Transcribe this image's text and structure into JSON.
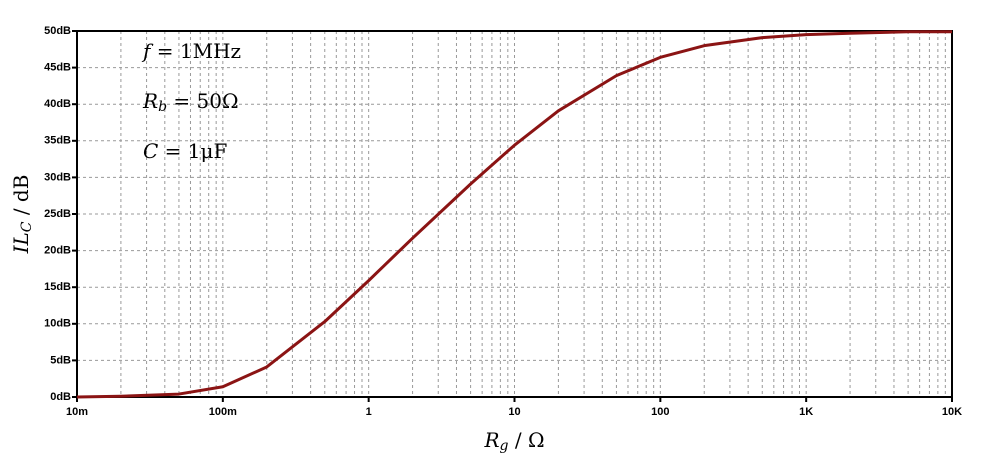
{
  "chart_data": {
    "type": "line",
    "xlabel": {
      "main": "R",
      "sub": "g",
      "rest": " / Ω"
    },
    "ylabel": {
      "main": "IL",
      "sub": "C",
      "rest": " / dB"
    },
    "annotations": [
      {
        "main": "f",
        "rest": " = 1MHz"
      },
      {
        "main": "R",
        "sub": "b",
        "rest": " = 50Ω"
      },
      {
        "main": "C",
        "rest": " = 1μF"
      }
    ],
    "xscale": "log",
    "grid": true,
    "x": [
      0.01,
      0.02,
      0.05,
      0.1,
      0.2,
      0.5,
      1,
      2,
      5,
      10,
      20,
      50,
      100,
      200,
      500,
      1000,
      2000,
      5000,
      10000
    ],
    "series": [
      {
        "color": "#8b1414",
        "values": [
          0,
          0.1,
          0.4,
          1.4,
          4.1,
          10.3,
          15.9,
          21.7,
          29.1,
          34.4,
          39.1,
          43.9,
          46.4,
          48.0,
          49.1,
          49.5,
          49.7,
          49.9,
          49.9
        ]
      }
    ],
    "xlim": [
      0.01,
      10000
    ],
    "ylim": [
      0,
      50
    ],
    "xticks": [
      {
        "value": 0.01,
        "label": "10m"
      },
      {
        "value": 0.1,
        "label": "100m"
      },
      1,
      10,
      100,
      {
        "value": 1000,
        "label": "1K"
      },
      {
        "value": 10000,
        "label": "10K"
      }
    ],
    "xminorticks": [
      0.02,
      0.03,
      0.04,
      0.05,
      0.06,
      0.07,
      0.08,
      0.09,
      0.2,
      0.3,
      0.4,
      0.5,
      0.6,
      0.7,
      0.8,
      0.9,
      2,
      3,
      4,
      5,
      6,
      7,
      8,
      9,
      20,
      30,
      40,
      50,
      60,
      70,
      80,
      90,
      200,
      300,
      400,
      500,
      600,
      700,
      800,
      900,
      2000,
      3000,
      4000,
      5000,
      6000,
      7000,
      8000,
      9000
    ],
    "yticks": [
      {
        "value": 0,
        "label": "0dB"
      },
      {
        "value": 5,
        "label": "5dB"
      },
      {
        "value": 10,
        "label": "10dB"
      },
      {
        "value": 15,
        "label": "15dB"
      },
      {
        "value": 20,
        "label": "20dB"
      },
      {
        "value": 25,
        "label": "25dB"
      },
      {
        "value": 30,
        "label": "30dB"
      },
      {
        "value": 35,
        "label": "35dB"
      },
      {
        "value": 40,
        "label": "40dB"
      },
      {
        "value": 45,
        "label": "45dB"
      },
      {
        "value": 50,
        "label": "50dB"
      }
    ]
  }
}
